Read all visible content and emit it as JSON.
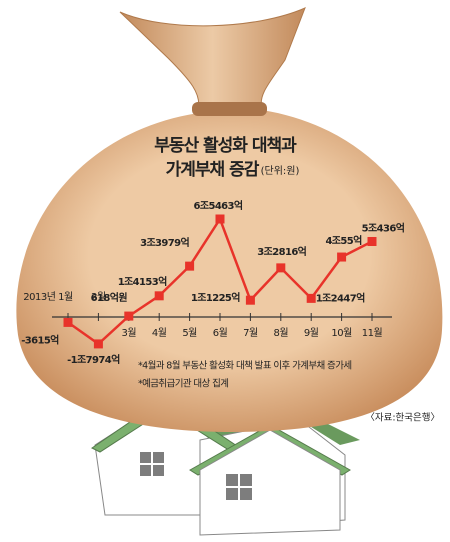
{
  "chart_data": {
    "type": "line",
    "title": "부동산 활성화 대책과",
    "subtitle": "가계부채 증감",
    "unit": "(단위:원)",
    "categories": [
      "2013년 1월",
      "2월",
      "3월",
      "4월",
      "5월",
      "6월",
      "7월",
      "8월",
      "9월",
      "10월",
      "11월"
    ],
    "values": [
      -3615,
      -17974,
      618,
      14153,
      33979,
      65463,
      11225,
      32816,
      12447,
      40055,
      50436
    ],
    "value_labels": [
      "-3615억",
      "-1조7974억",
      "618억원",
      "1조4153억",
      "3조3979억",
      "6조5463억",
      "1조1225억",
      "3조2816억",
      "1조2447억",
      "4조55억",
      "5조436억"
    ],
    "color": "#e8332a",
    "notes": [
      "*4월과 8월 부동산 활성화 대책 발표 이후 가계부채 증가세",
      "*예금취급기관 대상 집계"
    ],
    "source": "〈자료:한국은행〉"
  }
}
